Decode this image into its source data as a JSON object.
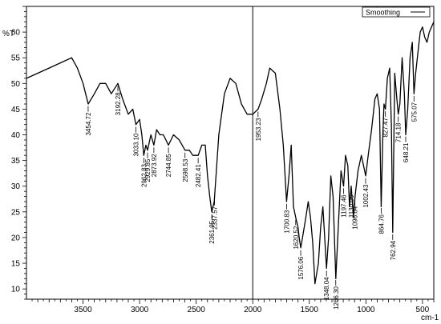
{
  "chart_data": {
    "type": "line",
    "title": "",
    "ylabel": "%T",
    "xlabel": "cm-1",
    "xlim": [
      4000,
      400
    ],
    "ylim": [
      8,
      65
    ],
    "x_ticks": [
      3500,
      3000,
      2500,
      2000,
      1500,
      1000,
      500
    ],
    "y_ticks": [
      10,
      15,
      20,
      25,
      30,
      35,
      40,
      45,
      50,
      55,
      60
    ],
    "legend": {
      "label": "Smoothing",
      "placement": "top-right"
    },
    "cursor_x": 2000,
    "series": [
      {
        "name": "Smoothing",
        "x": [
          4000,
          3900,
          3800,
          3700,
          3600,
          3550,
          3500,
          3454,
          3400,
          3350,
          3300,
          3250,
          3192,
          3150,
          3100,
          3060,
          3033,
          3000,
          2980,
          2963,
          2945,
          2930,
          2900,
          2874,
          2850,
          2820,
          2790,
          2745,
          2700,
          2650,
          2598,
          2560,
          2530,
          2482,
          2450,
          2420,
          2400,
          2380,
          2362,
          2340,
          2300,
          2250,
          2200,
          2150,
          2100,
          2050,
          2000,
          1953,
          1920,
          1880,
          1850,
          1800,
          1760,
          1730,
          1701,
          1680,
          1660,
          1640,
          1621,
          1600,
          1590,
          1576,
          1560,
          1530,
          1510,
          1490,
          1470,
          1450,
          1420,
          1400,
          1380,
          1348,
          1330,
          1310,
          1290,
          1266,
          1240,
          1220,
          1197,
          1180,
          1160,
          1145,
          1130,
          1110,
          1096,
          1070,
          1040,
          1002,
          980,
          950,
          920,
          900,
          880,
          865,
          850,
          840,
          827,
          810,
          790,
          775,
          763,
          745,
          730,
          714,
          700,
          680,
          660,
          648,
          630,
          610,
          590,
          575,
          560,
          540,
          520,
          500,
          480,
          460,
          440,
          420,
          400
        ],
        "y": [
          51,
          52,
          53,
          54,
          55,
          53,
          50,
          46,
          48,
          50,
          50,
          48,
          50,
          47,
          44,
          45,
          42,
          43,
          40,
          36,
          38,
          37,
          40,
          38,
          41,
          40,
          40,
          38,
          40,
          39,
          37,
          37,
          36,
          36,
          38,
          38,
          32,
          28,
          25,
          27,
          40,
          48,
          51,
          50,
          46,
          44,
          44,
          45,
          47,
          50,
          53,
          52,
          45,
          38,
          27,
          32,
          38,
          26,
          24,
          22,
          20,
          18,
          20,
          24,
          27,
          24,
          19,
          11,
          15,
          22,
          26,
          14,
          20,
          32,
          28,
          12,
          24,
          33,
          30,
          36,
          34,
          26,
          30,
          24,
          28,
          33,
          36,
          32,
          36,
          41,
          47,
          48,
          45,
          26,
          40,
          46,
          45,
          51,
          53,
          42,
          21,
          52,
          48,
          44,
          46,
          55,
          48,
          40,
          45,
          55,
          58,
          48,
          52,
          56,
          60,
          61,
          59,
          58,
          60,
          61,
          62
        ]
      }
    ],
    "peaks": [
      {
        "x": 3454.72,
        "label": "3454.72"
      },
      {
        "x": 3192.28,
        "label": "3192.28"
      },
      {
        "x": 3033.1,
        "label": "3033.10"
      },
      {
        "x": 2962.83,
        "label": "2962.83"
      },
      {
        "x": 2929.85,
        "label": "2929.85"
      },
      {
        "x": 2873.92,
        "label": "2873.92"
      },
      {
        "x": 2744.85,
        "label": "2744.85"
      },
      {
        "x": 2598.53,
        "label": "2598.53"
      },
      {
        "x": 2482.41,
        "label": "2482.41"
      },
      {
        "x": 2361.95,
        "label": "2361.95"
      },
      {
        "x": 2337.57,
        "label": "2337.57"
      },
      {
        "x": 1953.23,
        "label": "1953.23"
      },
      {
        "x": 1700.83,
        "label": "1700.83"
      },
      {
        "x": 1620.52,
        "label": "1620.52"
      },
      {
        "x": 1576.06,
        "label": "1576.06"
      },
      {
        "x": 1348.04,
        "label": "1348.04"
      },
      {
        "x": 1266.3,
        "label": "1266.30"
      },
      {
        "x": 1197.46,
        "label": "1197.46"
      },
      {
        "x": 1130.06,
        "label": "1130.06"
      },
      {
        "x": 1096.64,
        "label": "1096.64"
      },
      {
        "x": 1002.43,
        "label": "1002.43"
      },
      {
        "x": 864.76,
        "label": "864.76"
      },
      {
        "x": 827.47,
        "label": "827.47"
      },
      {
        "x": 762.94,
        "label": "762.94"
      },
      {
        "x": 714.18,
        "label": "714.18"
      },
      {
        "x": 648.21,
        "label": "648.21"
      },
      {
        "x": 575.07,
        "label": "575.07"
      }
    ],
    "colors": {
      "line": "#000000",
      "axis": "#000000",
      "background": "#ffffff"
    }
  }
}
